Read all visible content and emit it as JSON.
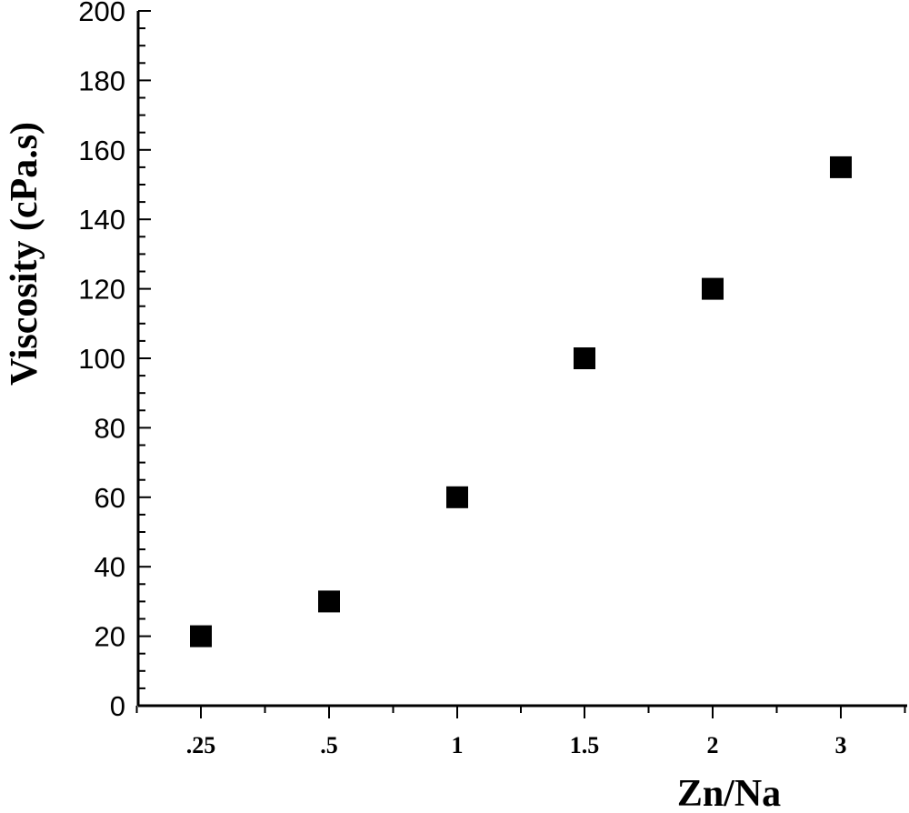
{
  "chart_data": {
    "type": "scatter",
    "title": "",
    "xlabel": "Zn/Na",
    "ylabel": "Viscosity (cPa.s)",
    "categories": [
      ".25",
      ".5",
      "1",
      "1.5",
      "2",
      "3"
    ],
    "series": [
      {
        "values": [
          20,
          30,
          60,
          100,
          120,
          155
        ]
      }
    ],
    "ylim": [
      0,
      200
    ],
    "yticks": [
      0,
      20,
      40,
      60,
      80,
      100,
      120,
      140,
      160,
      180,
      200
    ],
    "grid": false,
    "marker": "square",
    "marker_color": "#000000"
  }
}
